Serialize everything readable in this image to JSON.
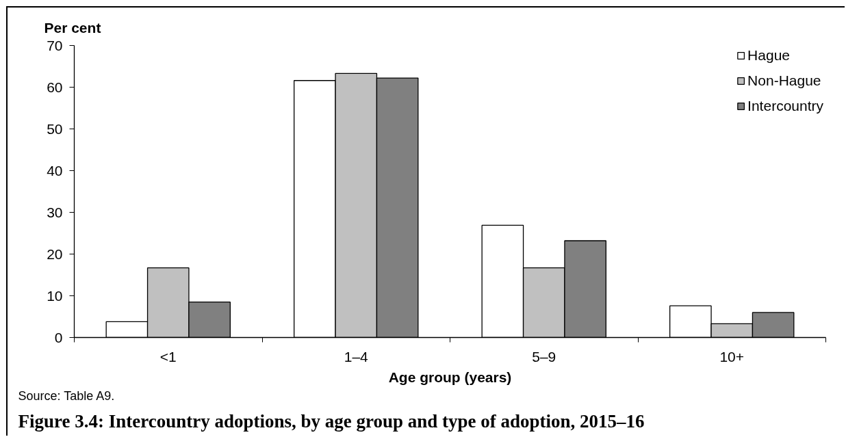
{
  "chart_data": {
    "type": "bar",
    "title": "Figure 3.4: Intercountry adoptions, by age group and type of adoption, 2015–16",
    "xlabel": "Age group (years)",
    "ylabel": "Per cent",
    "annotations": [
      "Source: Table A9."
    ],
    "categories": [
      "<1",
      "1–4",
      "5–9",
      "10+"
    ],
    "series": [
      {
        "name": "Hague",
        "color": "#ffffff",
        "values": [
          3.8,
          61.6,
          26.9,
          7.6
        ]
      },
      {
        "name": "Non-Hague",
        "color": "#c0c0c0",
        "values": [
          16.7,
          63.3,
          16.7,
          3.3
        ]
      },
      {
        "name": "Intercountry",
        "color": "#808080",
        "values": [
          8.5,
          62.2,
          23.2,
          6.0
        ]
      }
    ],
    "ylim": [
      0,
      70
    ],
    "yticks": [
      0,
      10,
      20,
      30,
      40,
      50,
      60,
      70
    ],
    "legend": "top right"
  }
}
